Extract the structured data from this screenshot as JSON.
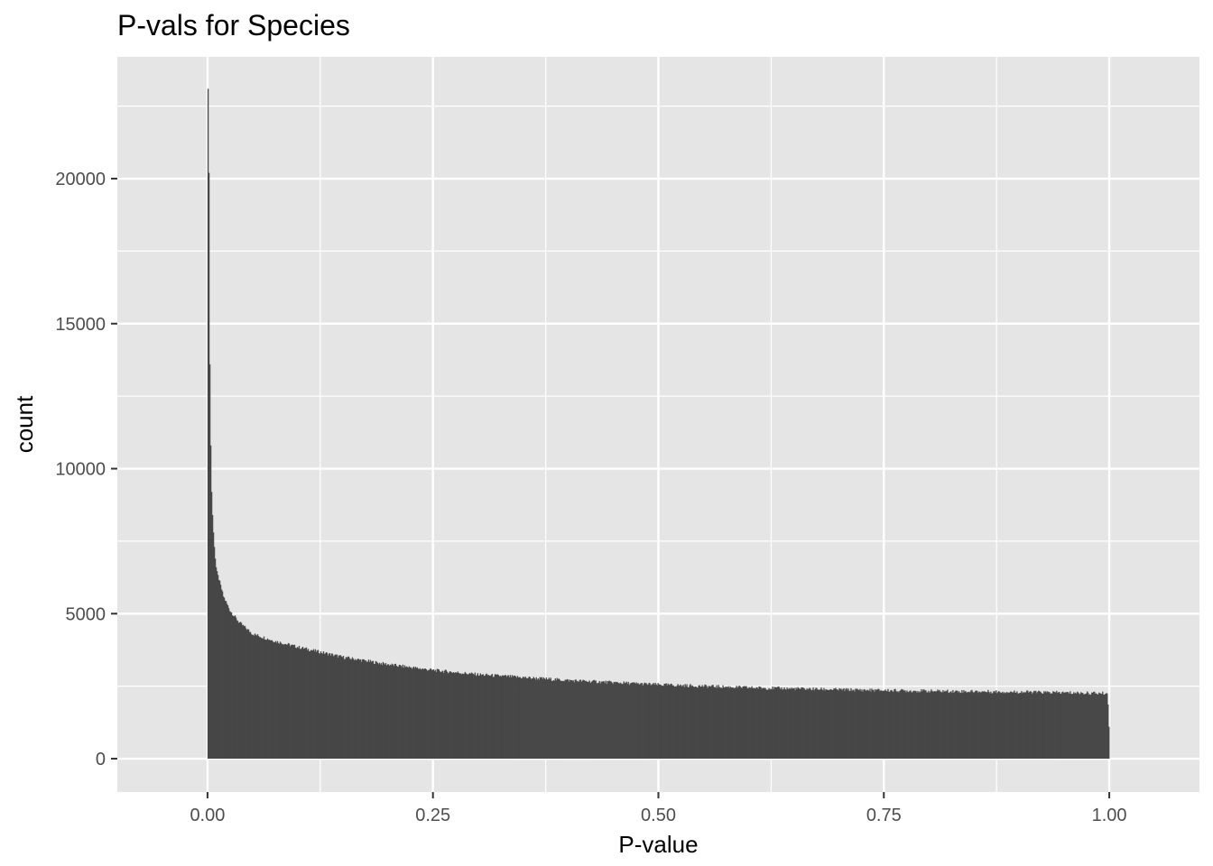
{
  "chart_data": {
    "type": "bar",
    "title": "P-vals for Species",
    "xlabel": "P-value",
    "ylabel": "count",
    "xlim": [
      -0.1,
      1.1
    ],
    "ylim": [
      -1150,
      24200
    ],
    "x_ticks": [
      0.0,
      0.25,
      0.5,
      0.75,
      1.0
    ],
    "x_tick_labels": [
      "0.00",
      "0.25",
      "0.50",
      "0.75",
      "1.00"
    ],
    "y_ticks": [
      0,
      5000,
      10000,
      15000,
      20000
    ],
    "y_tick_labels": [
      "0",
      "5000",
      "10000",
      "15000",
      "20000"
    ],
    "bin_width": 0.001,
    "x_range": [
      0.0,
      1.0
    ],
    "grid": true,
    "legend": "none",
    "bar_color": "#474747",
    "panel_color": "#e5e5e5",
    "grid_color": "#ffffff",
    "series": [
      {
        "x": [
          0.0005,
          0.0015,
          0.0025,
          0.0035,
          0.0045,
          0.0055,
          0.0065,
          0.0075,
          0.0085,
          0.0095,
          0.0125,
          0.0175,
          0.025,
          0.035,
          0.05,
          0.075,
          0.1,
          0.15,
          0.2,
          0.25,
          0.3,
          0.4,
          0.5,
          0.6,
          0.7,
          0.8,
          0.9,
          0.998,
          0.9995
        ],
        "values": [
          23100,
          20200,
          13600,
          10800,
          9200,
          8400,
          7800,
          7300,
          6900,
          6600,
          6200,
          5600,
          5100,
          4700,
          4300,
          4050,
          3850,
          3500,
          3250,
          3050,
          2900,
          2700,
          2550,
          2450,
          2380,
          2330,
          2300,
          2250,
          1100
        ]
      }
    ]
  }
}
